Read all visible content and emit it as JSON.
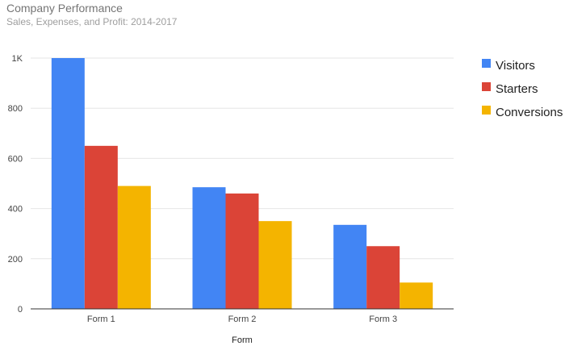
{
  "chart_data": {
    "type": "bar",
    "title": "Company Performance",
    "subtitle": "Sales, Expenses, and Profit: 2014-2017",
    "xlabel": "Form",
    "ylabel": "",
    "categories": [
      "Form 1",
      "Form 2",
      "Form 3"
    ],
    "series": [
      {
        "name": "Visitors",
        "color": "#4285F4",
        "values": [
          1000,
          485,
          335
        ]
      },
      {
        "name": "Starters",
        "color": "#DB4437",
        "values": [
          650,
          460,
          250
        ]
      },
      {
        "name": "Conversions",
        "color": "#F4B400",
        "values": [
          490,
          350,
          105
        ]
      }
    ],
    "ylim": [
      0,
      1000
    ],
    "yticks": [
      0,
      200,
      400,
      600,
      800,
      1000
    ],
    "ytick_labels": [
      "0",
      "200",
      "400",
      "600",
      "800",
      "1K"
    ],
    "grid": true,
    "legend_position": "right"
  }
}
